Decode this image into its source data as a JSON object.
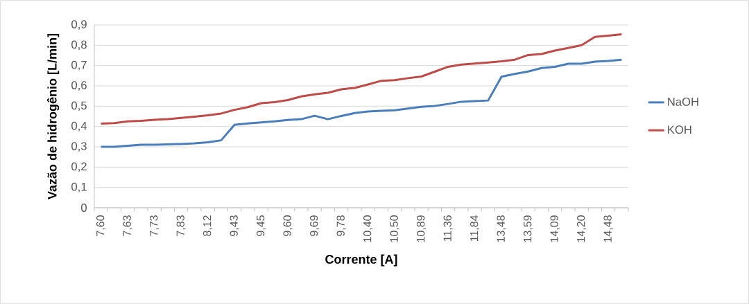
{
  "chart_data": {
    "type": "line",
    "xlabel": "Corrente [A]",
    "ylabel": "Vazão de hidrogênio [L/min]",
    "categories": [
      "7,60",
      null,
      "7,63",
      null,
      "7,73",
      null,
      "7,83",
      null,
      "8,12",
      null,
      "9,43",
      null,
      "9,45",
      null,
      "9,60",
      null,
      "9,69",
      null,
      "9,78",
      null,
      "10,40",
      null,
      "10,50",
      null,
      "10,89",
      null,
      "11,36",
      null,
      "11,84",
      null,
      "13,48",
      null,
      "13,59",
      null,
      "14,09",
      null,
      "14,20",
      null,
      "14,48",
      null
    ],
    "series": [
      {
        "name": "NaOH",
        "color": "#4a7ebb",
        "values": [
          0.3,
          0.3,
          0.305,
          0.31,
          0.31,
          0.312,
          0.314,
          0.317,
          0.322,
          0.332,
          0.408,
          0.415,
          0.42,
          0.425,
          0.432,
          0.436,
          0.453,
          0.436,
          0.452,
          0.466,
          0.474,
          0.477,
          0.48,
          0.488,
          0.497,
          0.501,
          0.511,
          0.522,
          0.525,
          0.528,
          0.645,
          0.659,
          0.671,
          0.688,
          0.694,
          0.709,
          0.709,
          0.719,
          0.723,
          0.729
        ]
      },
      {
        "name": "KOH",
        "color": "#be4b48",
        "values": [
          0.414,
          0.417,
          0.425,
          0.428,
          0.433,
          0.436,
          0.442,
          0.448,
          0.455,
          0.464,
          0.482,
          0.495,
          0.515,
          0.52,
          0.53,
          0.548,
          0.558,
          0.566,
          0.583,
          0.59,
          0.607,
          0.625,
          0.628,
          0.638,
          0.646,
          0.67,
          0.694,
          0.705,
          0.71,
          0.715,
          0.721,
          0.729,
          0.752,
          0.757,
          0.774,
          0.787,
          0.8,
          0.841,
          0.847,
          0.854
        ]
      }
    ],
    "ylim": [
      0,
      0.9
    ],
    "yticks": [
      0,
      {
        "value": 0.1,
        "label": "0,1"
      },
      {
        "value": 0.2,
        "label": "0,2"
      },
      {
        "value": 0.3,
        "label": "0,3"
      },
      {
        "value": 0.4,
        "label": "0,4"
      },
      {
        "value": 0.5,
        "label": "0,5"
      },
      {
        "value": 0.6,
        "label": "0,6"
      },
      {
        "value": 0.7,
        "label": "0,7"
      },
      {
        "value": 0.8,
        "label": "0,8"
      },
      {
        "value": 0.9,
        "label": "0,9"
      }
    ],
    "grid": "y",
    "legend": "right",
    "marker": "none",
    "line_style": "solid"
  }
}
